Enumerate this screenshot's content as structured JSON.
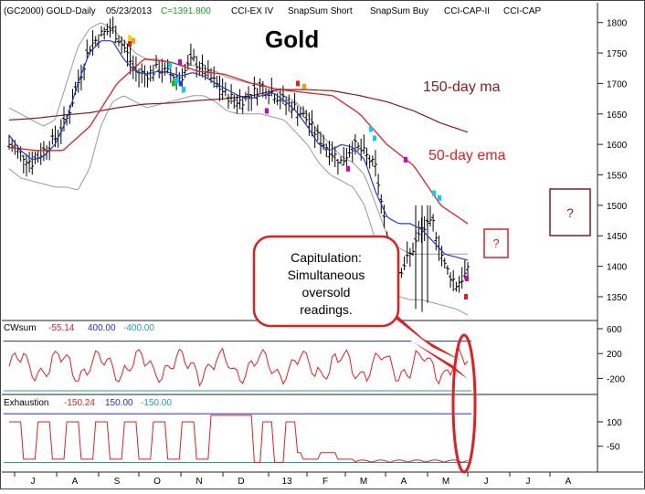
{
  "header": {
    "symbol": "(GC2000) GOLD-Daily",
    "date": "05/23/2013",
    "close": "C=1391.800",
    "studies": [
      "CCI-EX IV",
      "SnapSum Short",
      "SnapSum Buy",
      "CCI-CAP-II",
      "CCI-CAP"
    ]
  },
  "colors": {
    "price_bar": "#000000",
    "ema50": "#e02020",
    "ma150": "#8b1a1a",
    "fast_ma": "#1f3fd0",
    "envelope": "#9a9a9a",
    "osc_line": "#e02020",
    "upper_ref": "#2030c0",
    "lower_ref": "#20a0a0",
    "callout_border": "#e02020",
    "qbox_border_dark": "#8b1a1a",
    "qbox_border_red": "#e02020"
  },
  "annotations": {
    "title": "Gold",
    "label_150": "150-day ma",
    "label_50": "50-day ema",
    "question_big": "?",
    "question_small": "?",
    "callout_text": [
      "Capitulation:",
      "Simultaneous",
      "oversold",
      "readings."
    ]
  },
  "panels": {
    "cwsum": {
      "name": "CWsum",
      "value": "-55.14",
      "upper": "400.00",
      "lower": "-400.00"
    },
    "exhaustion": {
      "name": "Exhaustion",
      "value": "-150.24",
      "upper": "150.00",
      "lower": "-150.00"
    }
  },
  "chart_data": [
    {
      "type": "line",
      "title": "Gold",
      "ylim": [
        1320,
        1810
      ],
      "yticks": [
        1800,
        1750,
        1700,
        1650,
        1600,
        1550,
        1500,
        1450,
        1400,
        1350
      ],
      "x_labels": [
        "J",
        "A",
        "S",
        "O",
        "N",
        "D",
        "13",
        "F",
        "M",
        "A",
        "M",
        "J",
        "J",
        "A"
      ],
      "series": [
        {
          "name": "50-day ema",
          "values": [
            1595,
            1590,
            1590,
            1630,
            1700,
            1740,
            1735,
            1720,
            1715,
            1700,
            1690,
            1685,
            1680,
            1650,
            1600,
            1565,
            1500,
            1470
          ]
        },
        {
          "name": "150-day ma",
          "values": [
            1640,
            1643,
            1648,
            1652,
            1660,
            1666,
            1668,
            1672,
            1675,
            1680,
            1690,
            1690,
            1688,
            1680,
            1670,
            1655,
            1635,
            1620
          ]
        }
      ]
    },
    {
      "type": "line",
      "ylim": [
        -400,
        600
      ],
      "yticks": [
        600,
        200,
        -200
      ],
      "reference_lines": [
        400,
        -400
      ]
    },
    {
      "type": "line",
      "ylim": [
        -170,
        190
      ],
      "yticks": [
        100,
        -50
      ],
      "reference_lines": [
        150,
        -150
      ]
    }
  ]
}
